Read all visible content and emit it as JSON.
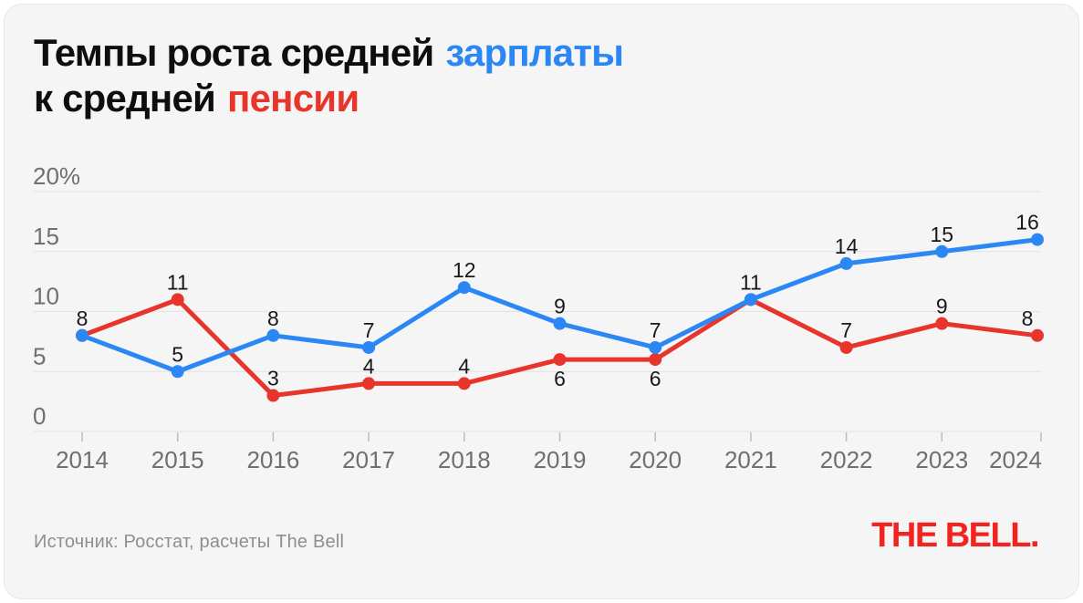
{
  "title": {
    "line1": {
      "text": "Темпы роста средней",
      "highlight": "зарплаты"
    },
    "line2": {
      "text": "к средней",
      "highlight": "пенсии"
    }
  },
  "footer": {
    "source": "Источник: Росстат, расчеты The Bell",
    "logo": "THE BELL."
  },
  "colors": {
    "salary": "#2b87f4",
    "pension": "#e8352b",
    "logo": "#f3241f",
    "grid_line": "#e2e2e4",
    "tick": "#bcbcbe",
    "axis_label": "#6f6f73",
    "data_label": "#19191c",
    "title_text": "#0e0e10",
    "card_background": "#f5f5f6",
    "page_background": "#ffffff",
    "source_text": "#8e8e92"
  },
  "chart_data": {
    "type": "line",
    "title": "Темпы роста средней зарплаты к средней пенсии",
    "categories": [
      "2014",
      "2015",
      "2016",
      "2017",
      "2018",
      "2019",
      "2020",
      "2021",
      "2022",
      "2023",
      "2024"
    ],
    "series": [
      {
        "name": "зарплата",
        "color": "#2b87f4",
        "values": [
          8,
          5,
          8,
          7,
          12,
          9,
          7,
          11,
          14,
          15,
          16
        ],
        "label_placement": [
          "above",
          "above",
          "above",
          "above",
          "above",
          "above",
          "above",
          "above",
          "above",
          "above",
          "above"
        ]
      },
      {
        "name": "пенсия",
        "color": "#e8352b",
        "values": [
          8,
          11,
          3,
          4,
          4,
          6,
          6,
          11,
          7,
          9,
          8
        ],
        "label_placement": [
          null,
          "above",
          "above",
          "above",
          "above",
          "below",
          "below",
          null,
          "above",
          "above",
          "above"
        ]
      }
    ],
    "ylim": [
      0,
      20
    ],
    "yticks": [
      0,
      5,
      10,
      15,
      20
    ],
    "ytick_labels": [
      "0",
      "5",
      "10",
      "15",
      "20%"
    ],
    "unit": "%",
    "grid": true,
    "data_labels": true,
    "legend": "inline-title-colored-words"
  }
}
